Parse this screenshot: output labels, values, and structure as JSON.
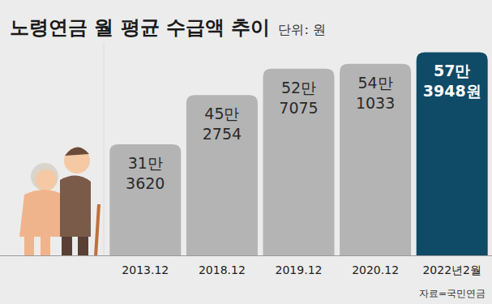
{
  "chart_data": {
    "type": "bar",
    "title": "노령연금 월 평균 수급액 추이",
    "subtitle": "단위: 원",
    "source": "자료=국민연금",
    "categories": [
      "2013.12",
      "2018.12",
      "2019.12",
      "2020.12",
      "2022년2월"
    ],
    "values": [
      313620,
      452754,
      527075,
      541033,
      573948
    ],
    "value_labels": [
      "31만 3620",
      "45만 2754",
      "52만 7075",
      "54만 1033",
      "57만 3948원"
    ],
    "colors": [
      "#b4b4b4",
      "#b4b4b4",
      "#b4b4b4",
      "#b4b4b4",
      "#0f4a66"
    ],
    "ylim": [
      0,
      600000
    ],
    "data_labels": true,
    "tick_labels": "x",
    "grid": false
  }
}
